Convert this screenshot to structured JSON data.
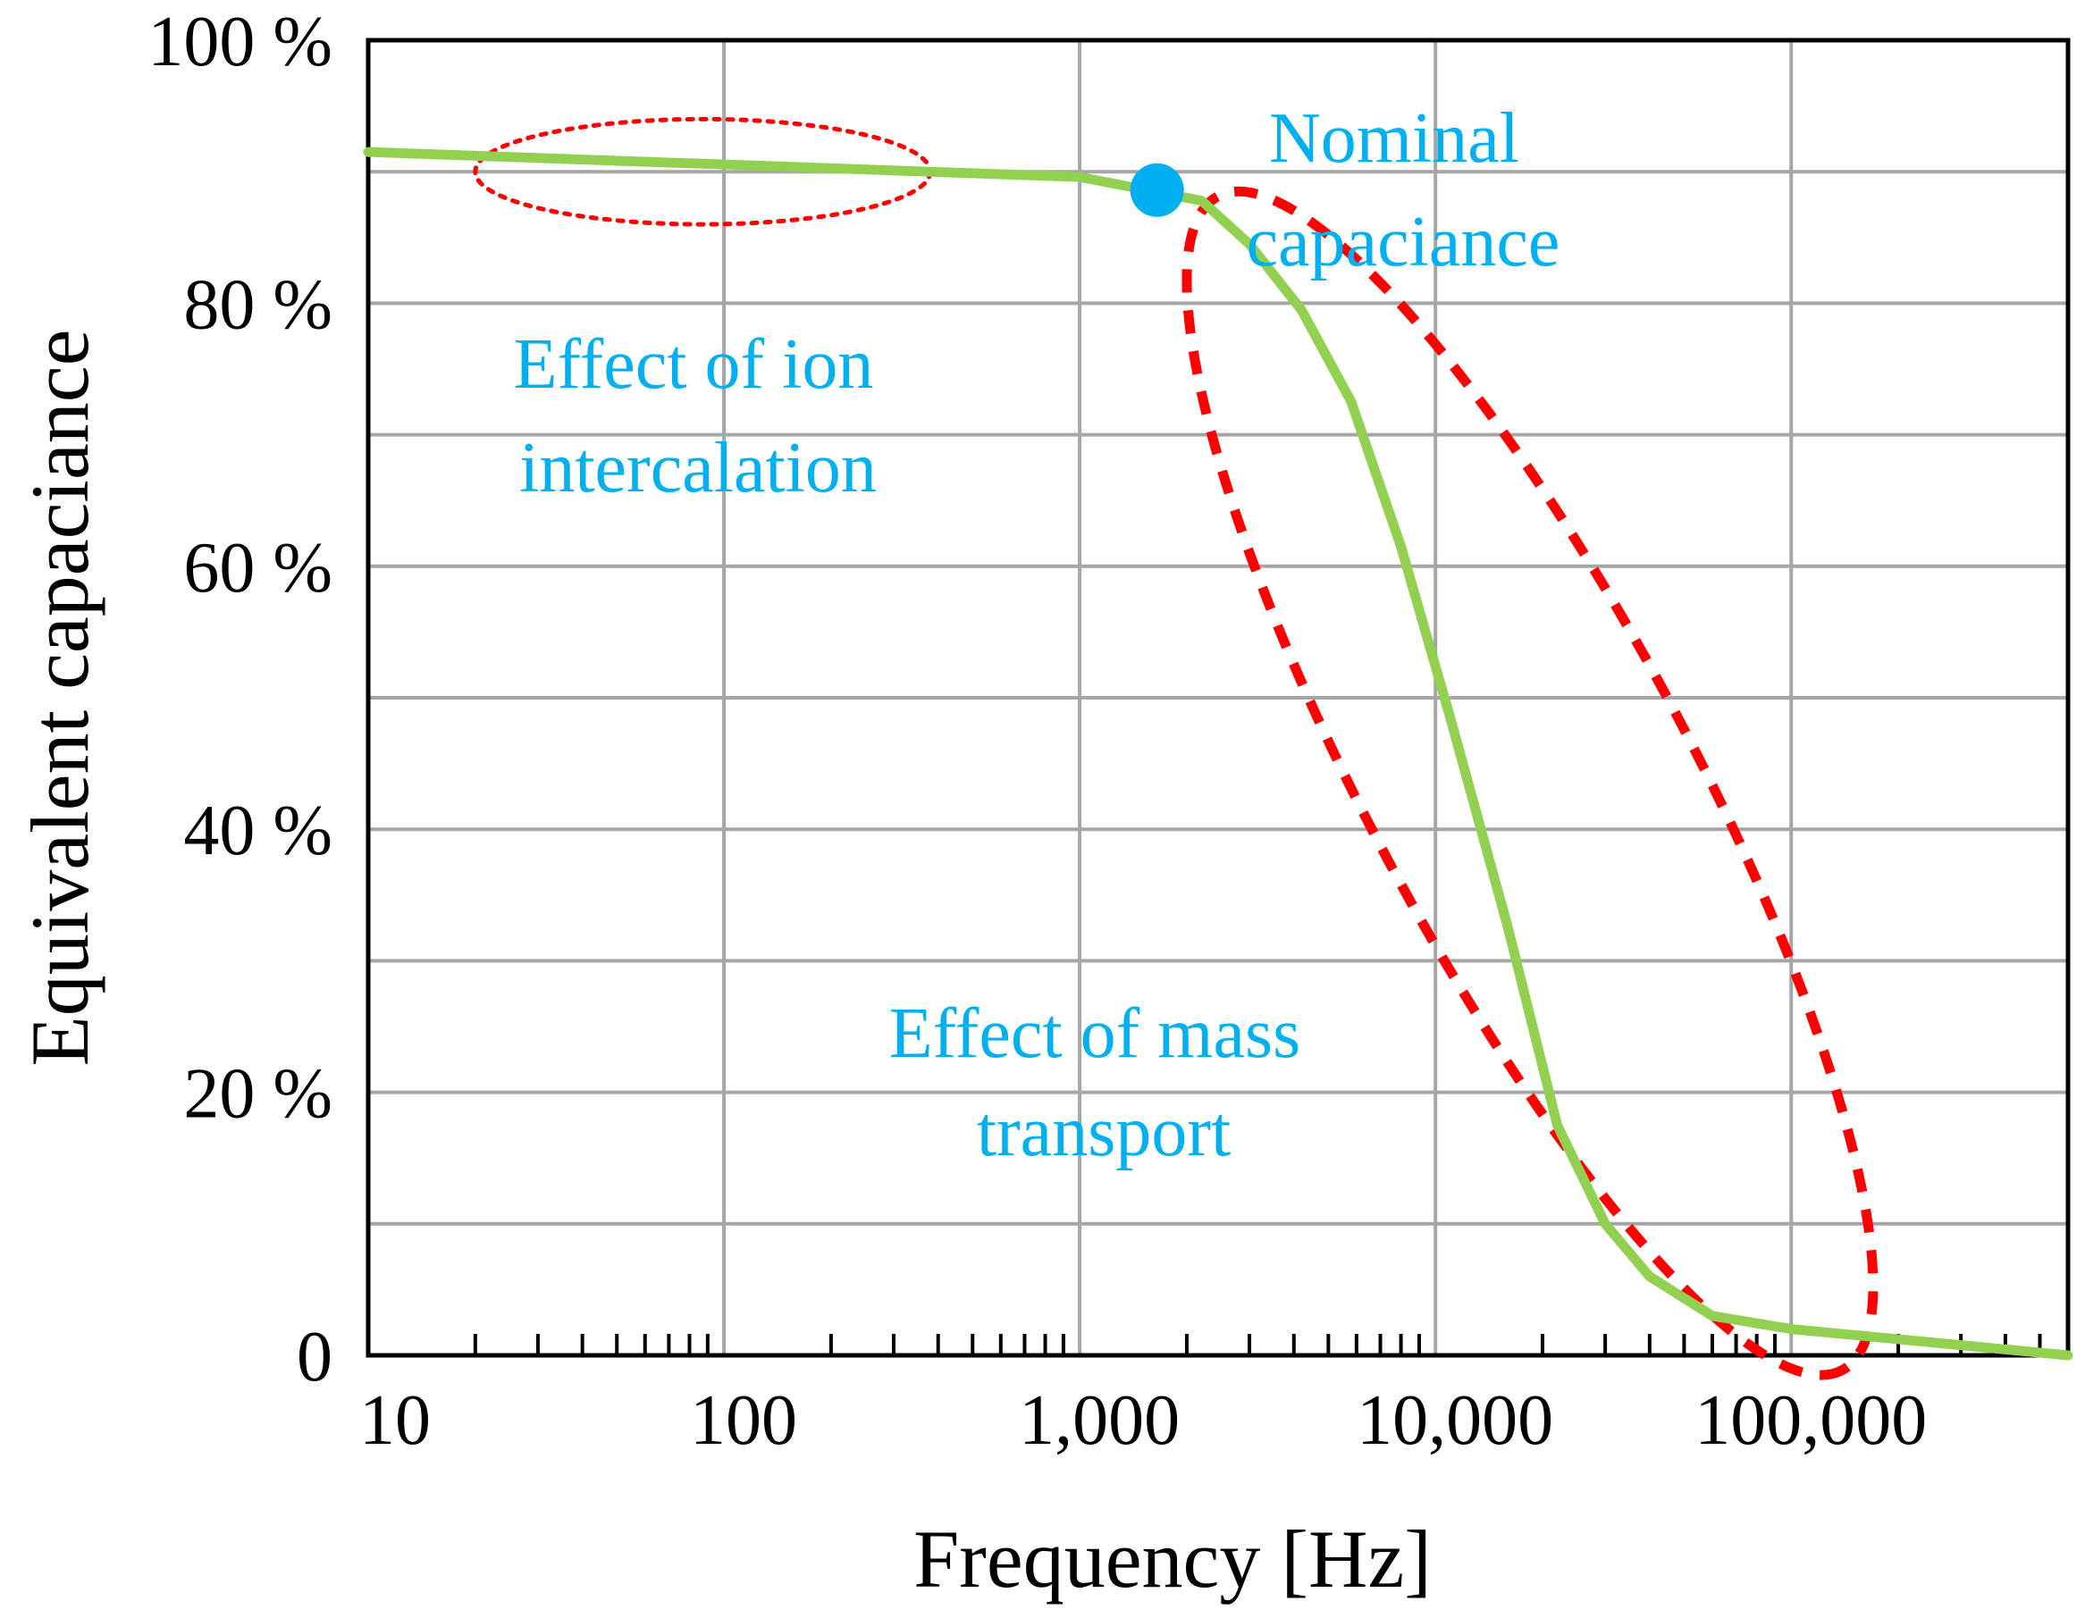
{
  "chart_data": {
    "type": "line",
    "title": "",
    "xlabel": "Frequency [Hz]",
    "ylabel": "Equivalent capaciance",
    "xscale": "log",
    "xlim": [
      10,
      600000
    ],
    "ylim": [
      0,
      100
    ],
    "grid": true,
    "x_tick_labels": [
      {
        "value": 10,
        "label": "10"
      },
      {
        "value": 100,
        "label": "100"
      },
      {
        "value": 1000,
        "label": "1,000"
      },
      {
        "value": 10000,
        "label": "10,000"
      },
      {
        "value": 100000,
        "label": "100,000"
      }
    ],
    "y_tick_labels": [
      {
        "value": 0,
        "label": "0"
      },
      {
        "value": 20,
        "label": "20 %"
      },
      {
        "value": 40,
        "label": "40 %"
      },
      {
        "value": 60,
        "label": "60 %"
      },
      {
        "value": 80,
        "label": "80 %"
      },
      {
        "value": 100,
        "label": "100 %"
      }
    ],
    "y_minor_gridlines": [
      10,
      30,
      50,
      70,
      90
    ],
    "series": [
      {
        "name": "Equivalent capaciance",
        "color": "#92d050",
        "x": [
          10,
          1000,
          2200,
          3000,
          4200,
          5800,
          8000,
          11000,
          16000,
          22000,
          30000,
          40000,
          60000,
          100000,
          600000
        ],
        "y": [
          91.5,
          89.6,
          87.8,
          84.5,
          79.5,
          72.5,
          61.5,
          48.5,
          32.5,
          17.5,
          10,
          6,
          3,
          2,
          0
        ]
      }
    ],
    "highlight_point": {
      "name": "Nominal capaciance",
      "x": 1650,
      "y": 88.6,
      "color": "#00b0f0"
    },
    "regions": [
      {
        "name": "Effect of ion intercalation",
        "x_range": [
          20,
          380
        ],
        "y_range": [
          86,
          94
        ],
        "style": "dotted",
        "color": "#ff0000"
      },
      {
        "name": "Effect of mass transport",
        "x_range": [
          2000,
          170000
        ],
        "y_range": [
          -1.5,
          88.5
        ],
        "style": "dashed",
        "color": "#ff0000"
      }
    ],
    "annotations": [
      {
        "lines": [
          "Nominal",
          "capaciance"
        ],
        "color": "#00b0f0"
      },
      {
        "lines": [
          "Effect of ion",
          "intercalation"
        ],
        "color": "#00b0f0"
      },
      {
        "lines": [
          "Effect of mass",
          "transport"
        ],
        "color": "#00b0f0"
      }
    ]
  }
}
